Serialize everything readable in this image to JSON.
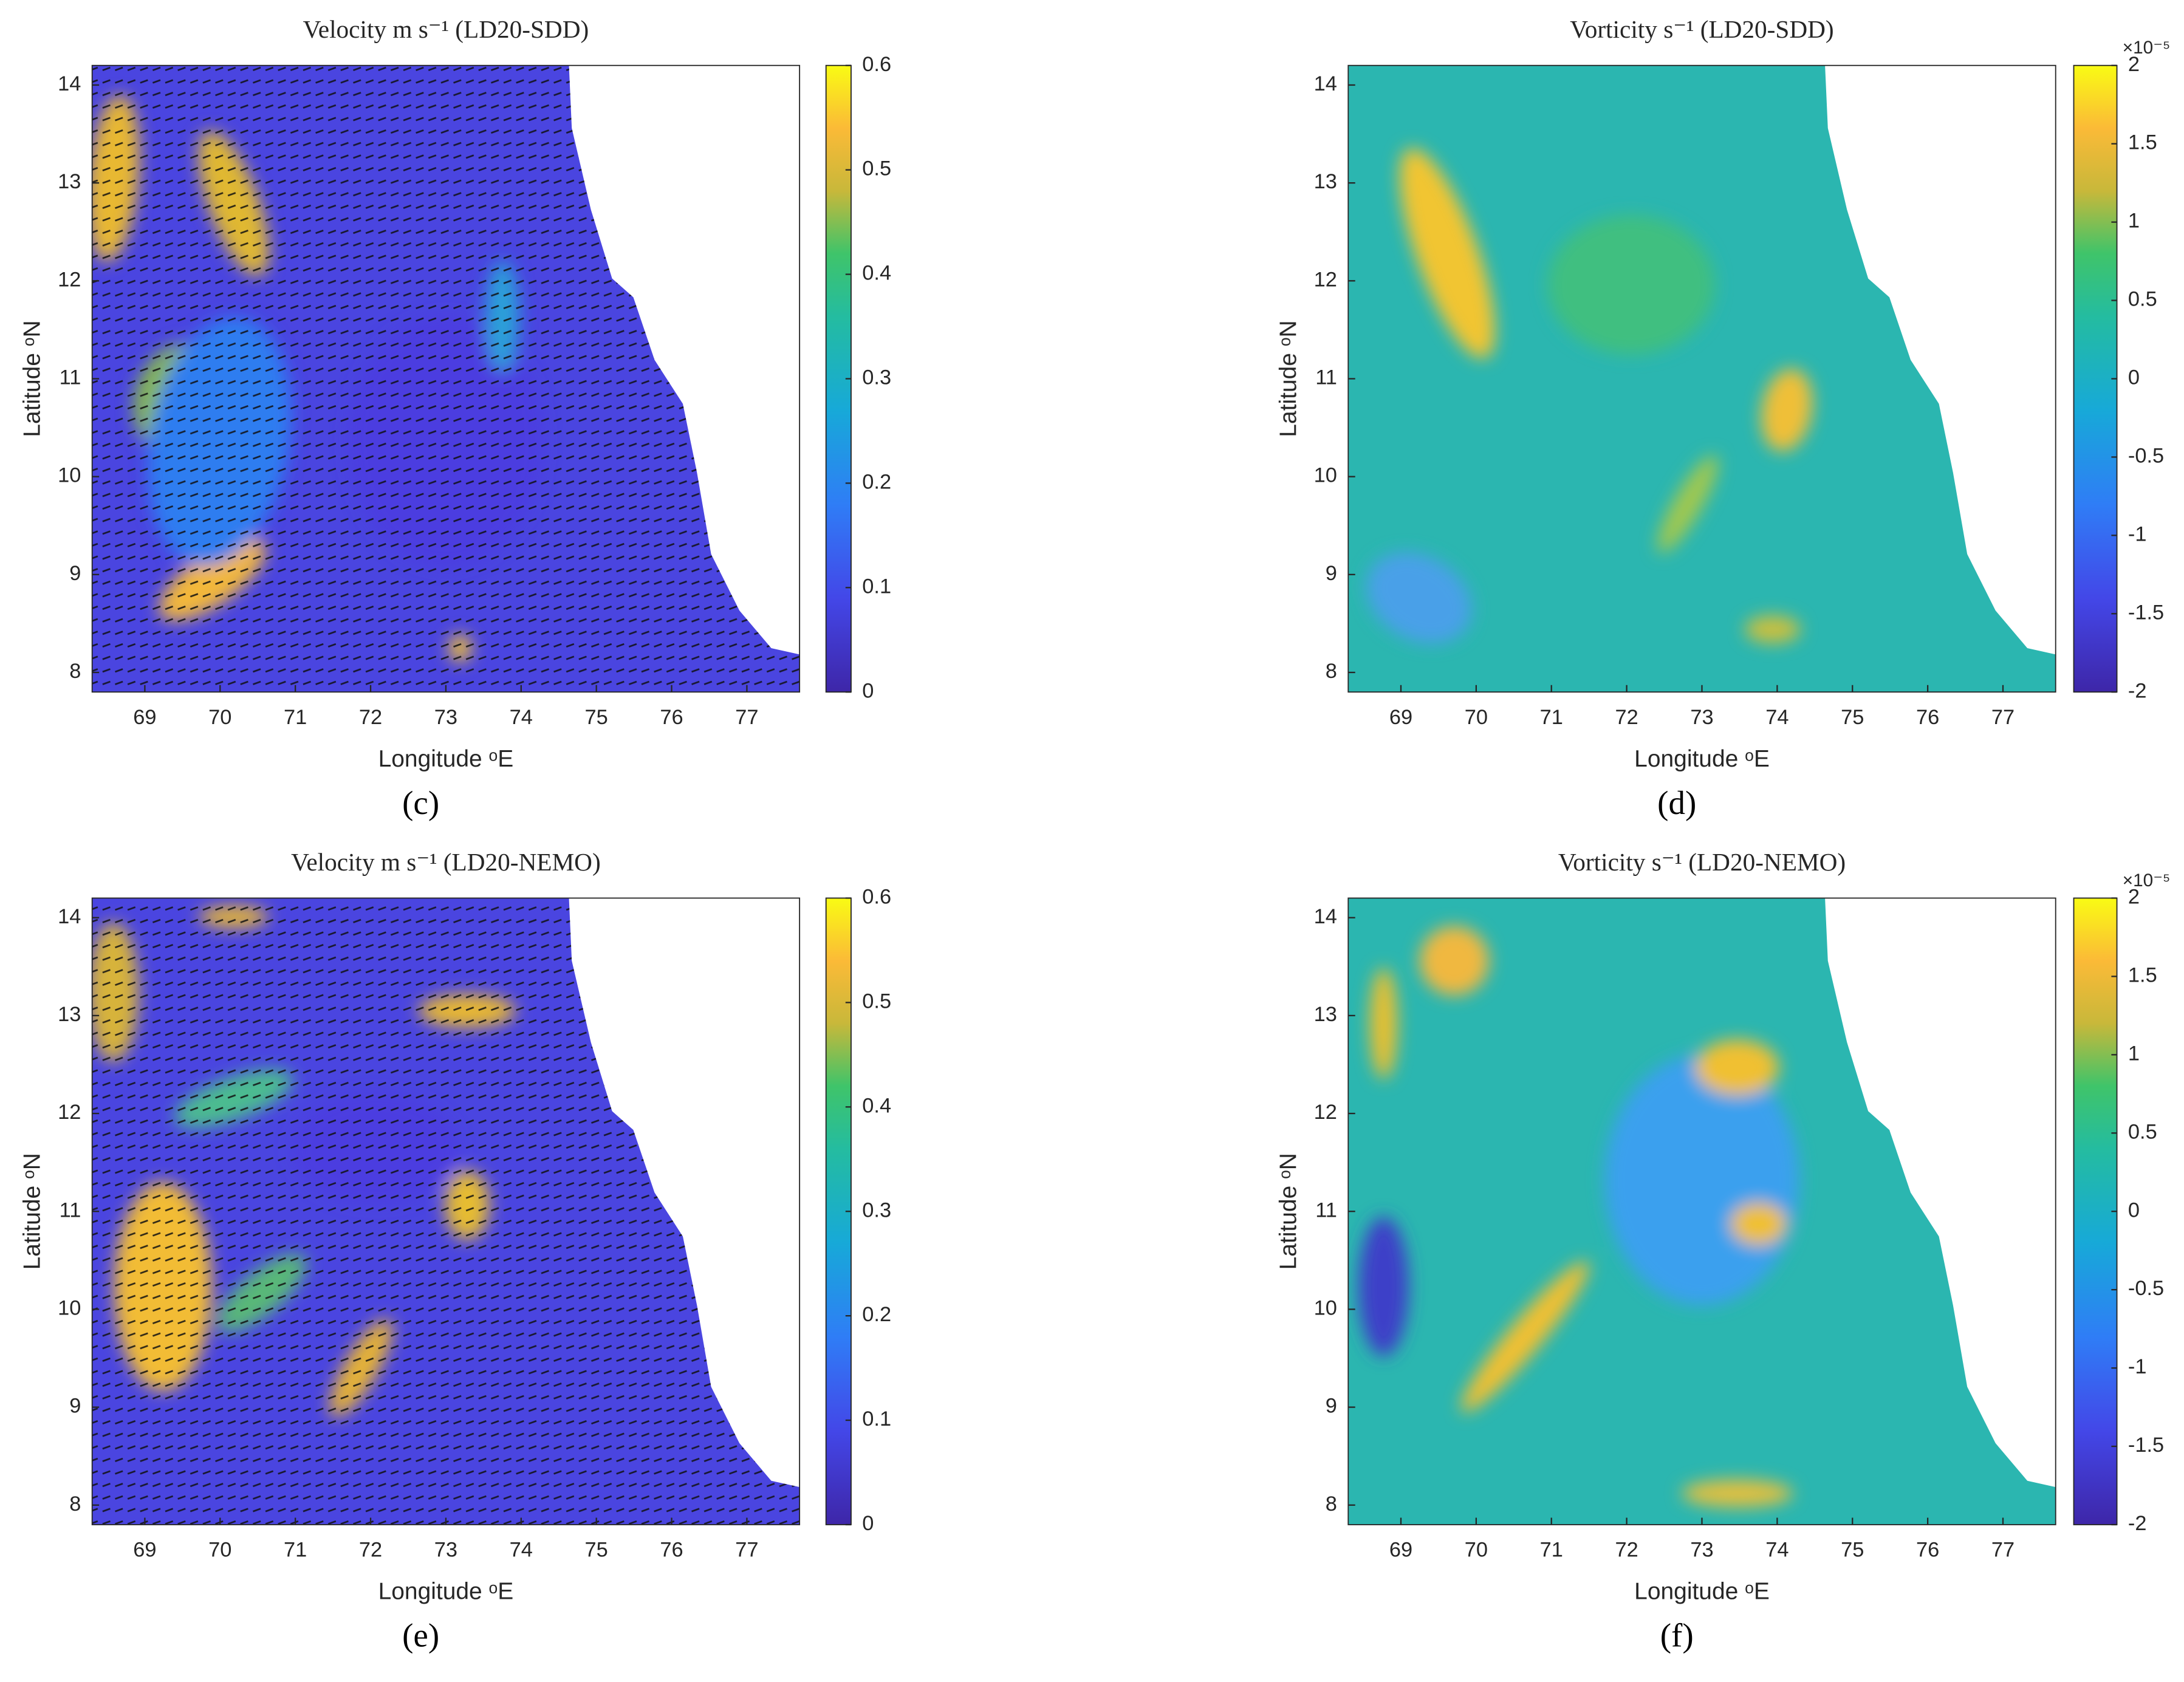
{
  "chart_data": [
    {
      "type": "heatmap",
      "title": "Velocity  m s⁻¹ (LD20-SDD)",
      "xlabel": "Longitude ᵒE",
      "ylabel": "Latitude ᵒN",
      "xlim": [
        68.3,
        77.7
      ],
      "ylim": [
        7.8,
        14.2
      ],
      "xticks": [
        69,
        70,
        71,
        72,
        73,
        74,
        75,
        76,
        77
      ],
      "yticks": [
        8,
        9,
        10,
        11,
        12,
        13,
        14
      ],
      "clim": [
        0,
        0.6
      ],
      "cticks": [
        0,
        0.1,
        0.2,
        0.3,
        0.4,
        0.5,
        0.6
      ],
      "panel_label": "(c)"
    },
    {
      "type": "heatmap",
      "title": "Vorticity  s⁻¹ (LD20-SDD)",
      "xlabel": "Longitude ᵒE",
      "ylabel": "Latitude ᵒN",
      "xlim": [
        68.3,
        77.7
      ],
      "ylim": [
        7.8,
        14.2
      ],
      "xticks": [
        69,
        70,
        71,
        72,
        73,
        74,
        75,
        76,
        77
      ],
      "yticks": [
        8,
        9,
        10,
        11,
        12,
        13,
        14
      ],
      "clim": [
        -2,
        2
      ],
      "cticks": [
        -2,
        -1.5,
        -1,
        -0.5,
        0,
        0.5,
        1,
        1.5,
        2
      ],
      "cscale": "×10⁻⁵",
      "panel_label": "(d)"
    },
    {
      "type": "heatmap",
      "title": "Velocity  m s⁻¹ (LD20-NEMO)",
      "xlabel": "Longitude ᵒE",
      "ylabel": "Latitude ᵒN",
      "xlim": [
        68.3,
        77.7
      ],
      "ylim": [
        7.8,
        14.2
      ],
      "xticks": [
        69,
        70,
        71,
        72,
        73,
        74,
        75,
        76,
        77
      ],
      "yticks": [
        8,
        9,
        10,
        11,
        12,
        13,
        14
      ],
      "clim": [
        0,
        0.6
      ],
      "cticks": [
        0,
        0.1,
        0.2,
        0.3,
        0.4,
        0.5,
        0.6
      ],
      "panel_label": "(e)"
    },
    {
      "type": "heatmap",
      "title": "Vorticity  s⁻¹ (LD20-NEMO)",
      "xlabel": "Longitude ᵒE",
      "ylabel": "Latitude ᵒN",
      "xlim": [
        68.3,
        77.7
      ],
      "ylim": [
        7.8,
        14.2
      ],
      "xticks": [
        69,
        70,
        71,
        72,
        73,
        74,
        75,
        76,
        77
      ],
      "yticks": [
        8,
        9,
        10,
        11,
        12,
        13,
        14
      ],
      "clim": [
        -2,
        2
      ],
      "cticks": [
        -2,
        -1.5,
        -1,
        -0.5,
        0,
        0.5,
        1,
        1.5,
        2
      ],
      "cscale": "×10⁻⁵",
      "panel_label": "(f)"
    }
  ]
}
